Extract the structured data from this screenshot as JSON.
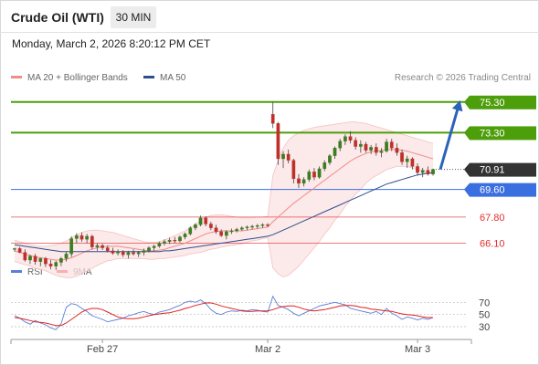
{
  "header": {
    "instrument": "Crude Oil (WTI)",
    "timeframe": "30 MIN",
    "datetime": "Monday, March 2, 2026 8:20:12 PM CET",
    "copyright": "Research © 2026 Trading Central"
  },
  "legend": {
    "ma20_label": "MA 20 + Bollinger Bands",
    "ma50_label": "MA 50",
    "ma20_color": "#f08c8c",
    "ma50_color": "#2e4f8f"
  },
  "rsi_legend": {
    "rsi_label": "RSI",
    "ma_label": "9MA",
    "rsi_color": "#5b7fd6",
    "ma_color": "#e02020"
  },
  "chart_data": {
    "type": "candlestick",
    "price_range": [
      65.0,
      76.0
    ],
    "levels": [
      {
        "value": 75.3,
        "label": "75.30",
        "kind": "target",
        "color": "#4d9e0b"
      },
      {
        "value": 73.3,
        "label": "73.30",
        "kind": "target",
        "color": "#4d9e0b"
      },
      {
        "value": 70.91,
        "label": "70.91",
        "kind": "current",
        "color": "#333333"
      },
      {
        "value": 69.6,
        "label": "69.60",
        "kind": "pivot",
        "color": "#3a6fe0"
      },
      {
        "value": 67.8,
        "label": "67.80",
        "kind": "support",
        "color": "#e03030"
      },
      {
        "value": 66.1,
        "label": "66.10",
        "kind": "support",
        "color": "#e03030"
      }
    ],
    "candles": [
      [
        65.7,
        65.8,
        65.55,
        65.75
      ],
      [
        65.75,
        65.85,
        65.45,
        65.5
      ],
      [
        65.5,
        65.7,
        64.9,
        65.0
      ],
      [
        65.0,
        65.35,
        64.75,
        65.25
      ],
      [
        65.25,
        65.4,
        64.7,
        64.9
      ],
      [
        64.9,
        65.15,
        64.6,
        65.1
      ],
      [
        65.1,
        65.2,
        64.55,
        64.75
      ],
      [
        64.75,
        65.0,
        64.4,
        64.6
      ],
      [
        64.6,
        64.95,
        64.35,
        64.85
      ],
      [
        64.85,
        65.2,
        64.6,
        65.1
      ],
      [
        65.1,
        65.55,
        64.9,
        65.4
      ],
      [
        65.4,
        66.55,
        65.2,
        66.4
      ],
      [
        66.4,
        66.75,
        66.1,
        66.6
      ],
      [
        66.6,
        66.8,
        66.2,
        66.35
      ],
      [
        66.35,
        66.7,
        66.1,
        66.55
      ],
      [
        66.55,
        66.65,
        65.7,
        65.85
      ],
      [
        65.85,
        66.1,
        65.6,
        65.95
      ],
      [
        65.95,
        66.05,
        65.65,
        65.8
      ],
      [
        65.8,
        65.95,
        65.5,
        65.6
      ],
      [
        65.6,
        65.8,
        65.35,
        65.45
      ],
      [
        65.45,
        65.7,
        65.3,
        65.55
      ],
      [
        65.55,
        65.65,
        65.2,
        65.35
      ],
      [
        65.35,
        65.6,
        65.1,
        65.5
      ],
      [
        65.5,
        65.7,
        65.3,
        65.4
      ],
      [
        65.4,
        65.6,
        65.2,
        65.5
      ],
      [
        65.5,
        65.75,
        65.3,
        65.6
      ],
      [
        65.6,
        65.9,
        65.5,
        65.8
      ],
      [
        65.8,
        66.0,
        65.6,
        65.9
      ],
      [
        65.9,
        66.2,
        65.8,
        66.1
      ],
      [
        66.1,
        66.35,
        65.95,
        66.2
      ],
      [
        66.2,
        66.45,
        66.05,
        66.3
      ],
      [
        66.3,
        66.5,
        66.1,
        66.25
      ],
      [
        66.25,
        66.6,
        66.15,
        66.5
      ],
      [
        66.5,
        66.8,
        66.35,
        66.7
      ],
      [
        66.7,
        67.2,
        66.6,
        67.1
      ],
      [
        67.1,
        67.4,
        66.95,
        67.3
      ],
      [
        67.3,
        67.9,
        67.2,
        67.75
      ],
      [
        67.75,
        67.85,
        67.2,
        67.35
      ],
      [
        67.35,
        67.5,
        66.95,
        67.1
      ],
      [
        67.1,
        67.3,
        66.7,
        66.85
      ],
      [
        66.85,
        67.0,
        66.5,
        66.6
      ],
      [
        66.6,
        66.95,
        66.35,
        66.85
      ],
      [
        66.85,
        67.05,
        66.7,
        66.9
      ],
      [
        66.9,
        67.1,
        66.8,
        67.0
      ],
      [
        67.0,
        67.2,
        66.9,
        67.1
      ],
      [
        67.1,
        67.25,
        66.95,
        67.15
      ],
      [
        67.15,
        67.3,
        67.0,
        67.2
      ],
      [
        67.2,
        67.35,
        67.05,
        67.25
      ],
      [
        67.25,
        67.4,
        67.1,
        67.3
      ],
      [
        67.3,
        67.4,
        67.15,
        67.25
      ],
      [
        74.5,
        75.3,
        73.6,
        73.9
      ],
      [
        73.9,
        74.0,
        71.2,
        71.6
      ],
      [
        71.6,
        72.1,
        71.0,
        71.9
      ],
      [
        71.9,
        72.2,
        71.3,
        71.5
      ],
      [
        71.5,
        71.6,
        70.0,
        70.3
      ],
      [
        70.3,
        70.6,
        69.7,
        70.0
      ],
      [
        70.0,
        70.4,
        69.8,
        70.25
      ],
      [
        70.25,
        70.9,
        70.1,
        70.75
      ],
      [
        70.75,
        71.0,
        70.2,
        70.4
      ],
      [
        70.4,
        71.1,
        70.3,
        70.95
      ],
      [
        70.95,
        71.5,
        70.8,
        71.35
      ],
      [
        71.35,
        71.9,
        71.2,
        71.8
      ],
      [
        71.8,
        72.4,
        71.6,
        72.3
      ],
      [
        72.3,
        72.9,
        72.1,
        72.75
      ],
      [
        72.75,
        73.2,
        72.5,
        73.05
      ],
      [
        73.05,
        73.4,
        72.6,
        72.8
      ],
      [
        72.8,
        73.0,
        72.2,
        72.4
      ],
      [
        72.4,
        72.8,
        72.0,
        72.55
      ],
      [
        72.55,
        72.7,
        72.0,
        72.15
      ],
      [
        72.15,
        72.5,
        71.9,
        72.35
      ],
      [
        72.35,
        72.6,
        71.8,
        72.0
      ],
      [
        72.0,
        72.3,
        71.7,
        72.1
      ],
      [
        72.1,
        72.9,
        72.0,
        72.7
      ],
      [
        72.7,
        72.9,
        72.1,
        72.3
      ],
      [
        72.3,
        72.6,
        71.8,
        72.0
      ],
      [
        72.0,
        72.2,
        71.2,
        71.4
      ],
      [
        71.4,
        71.8,
        71.0,
        71.6
      ],
      [
        71.6,
        71.7,
        70.9,
        71.1
      ],
      [
        71.1,
        71.3,
        70.5,
        70.7
      ],
      [
        70.7,
        71.0,
        70.4,
        70.85
      ],
      [
        70.85,
        71.1,
        70.5,
        70.6
      ],
      [
        70.6,
        70.95,
        70.5,
        70.91
      ]
    ],
    "ma20": [
      65.6,
      65.5,
      65.4,
      65.3,
      65.2,
      65.15,
      65.1,
      65.05,
      65.0,
      65.0,
      65.05,
      65.15,
      65.3,
      65.45,
      65.6,
      65.7,
      65.8,
      65.85,
      65.9,
      65.9,
      65.9,
      65.85,
      65.8,
      65.75,
      65.7,
      65.65,
      65.6,
      65.6,
      65.65,
      65.7,
      65.8,
      65.9,
      66.0,
      66.1,
      66.25,
      66.4,
      66.55,
      66.7,
      66.8,
      66.85,
      66.9,
      66.9,
      66.9,
      66.9,
      66.9,
      66.95,
      67.0,
      67.05,
      67.1,
      67.15,
      67.5,
      67.8,
      68.1,
      68.4,
      68.7,
      68.95,
      69.2,
      69.45,
      69.7,
      69.95,
      70.2,
      70.45,
      70.7,
      70.95,
      71.2,
      71.45,
      71.65,
      71.8,
      71.95,
      72.05,
      72.1,
      72.15,
      72.2,
      72.2,
      72.2,
      72.15,
      72.1,
      72.0,
      71.9,
      71.8,
      71.7,
      71.6
    ],
    "bb_upper": [
      66.3,
      66.2,
      66.1,
      66.0,
      65.95,
      65.9,
      65.9,
      65.95,
      66.0,
      66.1,
      66.25,
      66.45,
      66.65,
      66.8,
      66.9,
      66.95,
      66.95,
      66.9,
      66.85,
      66.8,
      66.7,
      66.6,
      66.5,
      66.4,
      66.3,
      66.2,
      66.15,
      66.15,
      66.2,
      66.3,
      66.45,
      66.6,
      66.75,
      66.9,
      67.1,
      67.35,
      67.6,
      67.8,
      67.9,
      67.95,
      67.95,
      67.9,
      67.85,
      67.8,
      67.75,
      67.75,
      67.75,
      67.8,
      67.8,
      67.85,
      70.5,
      71.5,
      72.3,
      72.8,
      73.1,
      73.3,
      73.45,
      73.55,
      73.65,
      73.7,
      73.75,
      73.8,
      73.85,
      73.9,
      73.95,
      74.0,
      74.0,
      73.95,
      73.9,
      73.8,
      73.7,
      73.6,
      73.5,
      73.4,
      73.3,
      73.2,
      73.1,
      73.0,
      72.9,
      72.8,
      72.7,
      72.6
    ],
    "bb_lower": [
      64.9,
      64.8,
      64.7,
      64.6,
      64.45,
      64.4,
      64.3,
      64.15,
      64.0,
      63.9,
      63.85,
      63.85,
      63.95,
      64.1,
      64.3,
      64.45,
      64.65,
      64.8,
      64.95,
      65.0,
      65.1,
      65.1,
      65.1,
      65.1,
      65.1,
      65.1,
      65.05,
      65.05,
      65.1,
      65.1,
      65.15,
      65.2,
      65.25,
      65.3,
      65.4,
      65.45,
      65.5,
      65.6,
      65.7,
      65.75,
      65.85,
      65.9,
      65.95,
      66.0,
      66.05,
      66.15,
      66.25,
      66.3,
      66.4,
      66.45,
      64.5,
      64.1,
      63.9,
      64.0,
      64.3,
      64.6,
      65.0,
      65.4,
      65.8,
      66.2,
      66.7,
      67.1,
      67.6,
      68.0,
      68.5,
      68.9,
      69.3,
      69.6,
      70.0,
      70.3,
      70.5,
      70.7,
      70.9,
      71.0,
      71.1,
      71.1,
      71.1,
      71.0,
      70.9,
      70.8,
      70.7,
      70.6
    ],
    "ma50": [
      66.0,
      65.95,
      65.9,
      65.85,
      65.8,
      65.75,
      65.7,
      65.65,
      65.6,
      65.55,
      65.55,
      65.55,
      65.55,
      65.55,
      65.55,
      65.55,
      65.55,
      65.55,
      65.55,
      65.55,
      65.55,
      65.55,
      65.55,
      65.55,
      65.55,
      65.55,
      65.55,
      65.55,
      65.55,
      65.6,
      65.6,
      65.65,
      65.7,
      65.75,
      65.8,
      65.85,
      65.9,
      65.95,
      66.0,
      66.05,
      66.1,
      66.15,
      66.2,
      66.25,
      66.3,
      66.35,
      66.4,
      66.45,
      66.5,
      66.55,
      66.65,
      66.8,
      66.95,
      67.1,
      67.25,
      67.4,
      67.55,
      67.7,
      67.85,
      68.0,
      68.15,
      68.3,
      68.45,
      68.6,
      68.75,
      68.9,
      69.05,
      69.2,
      69.35,
      69.5,
      69.65,
      69.8,
      69.95,
      70.05,
      70.15,
      70.25,
      70.35,
      70.45,
      70.55,
      70.6,
      70.65,
      70.7
    ],
    "rsi": {
      "ticks": [
        70,
        50,
        30
      ],
      "range": [
        15,
        90
      ],
      "rsi_values": [
        48,
        44,
        38,
        34,
        40,
        36,
        33,
        28,
        25,
        35,
        62,
        68,
        66,
        60,
        55,
        48,
        45,
        42,
        38,
        40,
        42,
        44,
        48,
        50,
        53,
        55,
        52,
        50,
        54,
        56,
        58,
        62,
        65,
        70,
        72,
        70,
        74,
        68,
        58,
        52,
        50,
        54,
        56,
        55,
        57,
        56,
        58,
        57,
        55,
        54,
        80,
        65,
        62,
        58,
        52,
        48,
        52,
        56,
        60,
        64,
        66,
        68,
        70,
        68,
        66,
        60,
        58,
        56,
        54,
        52,
        55,
        50,
        60,
        52,
        48,
        42,
        46,
        44,
        41,
        44,
        42,
        45
      ],
      "ma_values": [
        45,
        44,
        42,
        40,
        38,
        37,
        36,
        34,
        32,
        32,
        36,
        42,
        48,
        54,
        58,
        60,
        60,
        58,
        54,
        50,
        46,
        44,
        43,
        43,
        44,
        46,
        48,
        50,
        51,
        52,
        53,
        55,
        57,
        60,
        62,
        65,
        67,
        69,
        69,
        67,
        64,
        62,
        60,
        58,
        56,
        55,
        55,
        56,
        56,
        56,
        58,
        61,
        63,
        64,
        64,
        62,
        59,
        57,
        56,
        57,
        58,
        60,
        62,
        64,
        65,
        65,
        64,
        62,
        61,
        59,
        58,
        57,
        56,
        55,
        53,
        51,
        50,
        49,
        48,
        46,
        45,
        45
      ]
    },
    "x_ticks": [
      {
        "label": "Feb 27",
        "index": 17
      },
      {
        "label": "Mar 2",
        "index": 49
      },
      {
        "label": "Mar 3",
        "index": 78
      }
    ],
    "forecast_arrow": {
      "from": 70.91,
      "to": 75.3
    }
  }
}
